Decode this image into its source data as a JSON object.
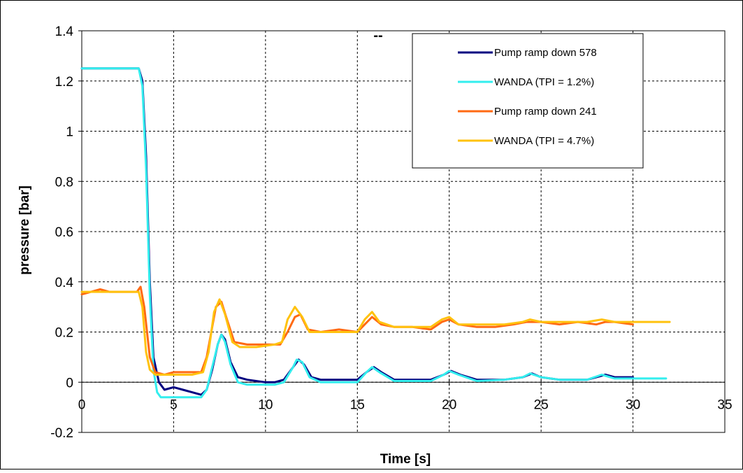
{
  "chart_data": {
    "type": "line",
    "title": "",
    "annotation": "--",
    "xlabel": "Time [s]",
    "ylabel": "pressure [bar]",
    "xlim": [
      0,
      35
    ],
    "ylim": [
      -0.2,
      1.4
    ],
    "xticks": [
      "0",
      "5",
      "10",
      "15",
      "20",
      "25",
      "30",
      "35"
    ],
    "yticks": [
      "-0.2",
      "0",
      "0.2",
      "0.4",
      "0.6",
      "0.8",
      "1",
      "1.2",
      "1.4"
    ],
    "grid": true,
    "legend_position": "top-right",
    "series": [
      {
        "name": "Pump ramp down 578",
        "color": "#000080",
        "points": [
          [
            0,
            1.25
          ],
          [
            1,
            1.25
          ],
          [
            2,
            1.25
          ],
          [
            3.1,
            1.25
          ],
          [
            3.3,
            1.2
          ],
          [
            3.5,
            0.9
          ],
          [
            3.7,
            0.4
          ],
          [
            3.9,
            0.1
          ],
          [
            4.2,
            0.0
          ],
          [
            4.5,
            -0.03
          ],
          [
            5,
            -0.02
          ],
          [
            5.5,
            -0.03
          ],
          [
            6,
            -0.04
          ],
          [
            6.5,
            -0.05
          ],
          [
            6.8,
            -0.03
          ],
          [
            7.1,
            0.05
          ],
          [
            7.4,
            0.15
          ],
          [
            7.6,
            0.19
          ],
          [
            7.8,
            0.17
          ],
          [
            8.1,
            0.08
          ],
          [
            8.5,
            0.02
          ],
          [
            9,
            0.01
          ],
          [
            10,
            0.0
          ],
          [
            10.5,
            0.0
          ],
          [
            11,
            0.01
          ],
          [
            11.5,
            0.06
          ],
          [
            11.8,
            0.09
          ],
          [
            12.1,
            0.07
          ],
          [
            12.5,
            0.02
          ],
          [
            13,
            0.01
          ],
          [
            14,
            0.01
          ],
          [
            15,
            0.01
          ],
          [
            15.5,
            0.04
          ],
          [
            15.9,
            0.06
          ],
          [
            16.3,
            0.04
          ],
          [
            17,
            0.01
          ],
          [
            18,
            0.01
          ],
          [
            19,
            0.01
          ],
          [
            19.7,
            0.03
          ],
          [
            20.1,
            0.045
          ],
          [
            20.6,
            0.03
          ],
          [
            21.5,
            0.01
          ],
          [
            23,
            0.01
          ],
          [
            24,
            0.02
          ],
          [
            24.5,
            0.035
          ],
          [
            25,
            0.02
          ],
          [
            26,
            0.01
          ],
          [
            27.5,
            0.01
          ],
          [
            28.5,
            0.03
          ],
          [
            29,
            0.02
          ],
          [
            30,
            0.02
          ]
        ]
      },
      {
        "name": "WANDA (TPI = 1.2%)",
        "color": "#33eeee",
        "points": [
          [
            0,
            1.25
          ],
          [
            1,
            1.25
          ],
          [
            2,
            1.25
          ],
          [
            3.1,
            1.25
          ],
          [
            3.3,
            1.18
          ],
          [
            3.5,
            0.85
          ],
          [
            3.7,
            0.35
          ],
          [
            3.9,
            0.05
          ],
          [
            4.1,
            -0.04
          ],
          [
            4.3,
            -0.06
          ],
          [
            5,
            -0.06
          ],
          [
            6,
            -0.06
          ],
          [
            6.5,
            -0.06
          ],
          [
            6.8,
            -0.03
          ],
          [
            7.1,
            0.06
          ],
          [
            7.4,
            0.15
          ],
          [
            7.6,
            0.19
          ],
          [
            7.8,
            0.16
          ],
          [
            8.1,
            0.07
          ],
          [
            8.5,
            0.0
          ],
          [
            9,
            -0.01
          ],
          [
            10,
            -0.01
          ],
          [
            10.5,
            -0.01
          ],
          [
            11,
            0.0
          ],
          [
            11.5,
            0.06
          ],
          [
            11.7,
            0.09
          ],
          [
            12,
            0.08
          ],
          [
            12.4,
            0.02
          ],
          [
            13,
            0.0
          ],
          [
            14,
            0.0
          ],
          [
            15,
            0.0
          ],
          [
            15.5,
            0.04
          ],
          [
            15.8,
            0.06
          ],
          [
            16.2,
            0.04
          ],
          [
            17,
            0.005
          ],
          [
            18,
            0.005
          ],
          [
            19,
            0.005
          ],
          [
            19.7,
            0.03
          ],
          [
            20,
            0.045
          ],
          [
            20.5,
            0.03
          ],
          [
            21.5,
            0.005
          ],
          [
            23,
            0.01
          ],
          [
            24,
            0.02
          ],
          [
            24.4,
            0.035
          ],
          [
            25,
            0.02
          ],
          [
            26,
            0.01
          ],
          [
            27.5,
            0.01
          ],
          [
            28.3,
            0.03
          ],
          [
            29,
            0.015
          ],
          [
            30,
            0.015
          ],
          [
            31,
            0.015
          ],
          [
            31.8,
            0.015
          ]
        ]
      },
      {
        "name": "Pump ramp down 241",
        "color": "#ff6a13",
        "points": [
          [
            0,
            0.35
          ],
          [
            0.5,
            0.36
          ],
          [
            1,
            0.37
          ],
          [
            1.5,
            0.36
          ],
          [
            2,
            0.36
          ],
          [
            2.5,
            0.36
          ],
          [
            3,
            0.36
          ],
          [
            3.2,
            0.38
          ],
          [
            3.4,
            0.3
          ],
          [
            3.7,
            0.1
          ],
          [
            4,
            0.04
          ],
          [
            4.5,
            0.03
          ],
          [
            5,
            0.04
          ],
          [
            5.5,
            0.04
          ],
          [
            6,
            0.04
          ],
          [
            6.5,
            0.04
          ],
          [
            6.8,
            0.1
          ],
          [
            7.1,
            0.22
          ],
          [
            7.3,
            0.3
          ],
          [
            7.6,
            0.32
          ],
          [
            7.9,
            0.25
          ],
          [
            8.3,
            0.16
          ],
          [
            9,
            0.15
          ],
          [
            10,
            0.15
          ],
          [
            10.8,
            0.15
          ],
          [
            11.2,
            0.2
          ],
          [
            11.6,
            0.26
          ],
          [
            11.9,
            0.27
          ],
          [
            12.3,
            0.21
          ],
          [
            13,
            0.2
          ],
          [
            14,
            0.21
          ],
          [
            15,
            0.2
          ],
          [
            15.4,
            0.23
          ],
          [
            15.8,
            0.26
          ],
          [
            16.3,
            0.23
          ],
          [
            17,
            0.22
          ],
          [
            18,
            0.22
          ],
          [
            19,
            0.21
          ],
          [
            19.6,
            0.24
          ],
          [
            20,
            0.25
          ],
          [
            20.5,
            0.23
          ],
          [
            21.5,
            0.22
          ],
          [
            22.5,
            0.22
          ],
          [
            23.5,
            0.23
          ],
          [
            24.2,
            0.24
          ],
          [
            25,
            0.24
          ],
          [
            26,
            0.23
          ],
          [
            27,
            0.24
          ],
          [
            28,
            0.23
          ],
          [
            28.5,
            0.24
          ],
          [
            29,
            0.24
          ],
          [
            30,
            0.23
          ]
        ]
      },
      {
        "name": "WANDA (TPI = 4.7%)",
        "color": "#ffc20e",
        "points": [
          [
            0,
            0.36
          ],
          [
            1,
            0.36
          ],
          [
            2,
            0.36
          ],
          [
            3.1,
            0.36
          ],
          [
            3.3,
            0.3
          ],
          [
            3.5,
            0.12
          ],
          [
            3.7,
            0.05
          ],
          [
            4,
            0.03
          ],
          [
            5,
            0.03
          ],
          [
            6,
            0.03
          ],
          [
            6.6,
            0.04
          ],
          [
            6.9,
            0.12
          ],
          [
            7.2,
            0.28
          ],
          [
            7.5,
            0.33
          ],
          [
            7.8,
            0.27
          ],
          [
            8.2,
            0.16
          ],
          [
            8.6,
            0.14
          ],
          [
            9.5,
            0.14
          ],
          [
            10.5,
            0.15
          ],
          [
            10.9,
            0.16
          ],
          [
            11.2,
            0.25
          ],
          [
            11.6,
            0.3
          ],
          [
            12,
            0.26
          ],
          [
            12.4,
            0.2
          ],
          [
            13,
            0.2
          ],
          [
            14,
            0.2
          ],
          [
            15,
            0.2
          ],
          [
            15.4,
            0.25
          ],
          [
            15.8,
            0.28
          ],
          [
            16.2,
            0.24
          ],
          [
            17,
            0.22
          ],
          [
            18,
            0.22
          ],
          [
            19,
            0.22
          ],
          [
            19.6,
            0.25
          ],
          [
            20,
            0.26
          ],
          [
            20.5,
            0.23
          ],
          [
            21.5,
            0.23
          ],
          [
            23,
            0.23
          ],
          [
            24,
            0.24
          ],
          [
            24.4,
            0.25
          ],
          [
            25,
            0.24
          ],
          [
            26,
            0.24
          ],
          [
            27.5,
            0.24
          ],
          [
            28.3,
            0.25
          ],
          [
            29,
            0.24
          ],
          [
            30,
            0.24
          ],
          [
            31,
            0.24
          ],
          [
            32,
            0.24
          ]
        ]
      }
    ]
  }
}
